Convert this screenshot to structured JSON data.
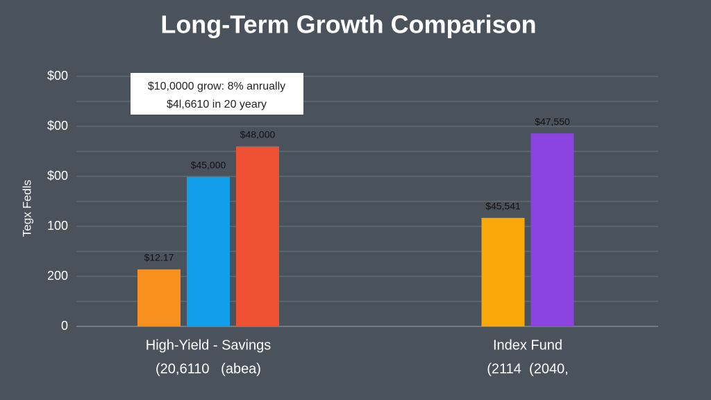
{
  "chart_data": {
    "type": "bar",
    "title": "Long-Term Growth Comparison",
    "y_label": "Tegx Fedls",
    "annotation": [
      "$10,0000 grow: 8% anrually",
      "$4l,6610 in 20 yeary"
    ],
    "ylim": [
      0,
      5
    ],
    "yticks": [
      {
        "value": 0,
        "label": "0"
      },
      {
        "value": 1,
        "label": "200"
      },
      {
        "value": 2,
        "label": "100"
      },
      {
        "value": 3,
        "label": "$00"
      },
      {
        "value": 4,
        "label": "$00"
      },
      {
        "value": 5,
        "label": "$00"
      }
    ],
    "minor_yticks": [
      0.5,
      1.5,
      2.5,
      3.5,
      4.5
    ],
    "grid": true,
    "groups": [
      {
        "label": "High-Yield - Savings",
        "sublabel": "(20,6110   (abea)",
        "bars": [
          {
            "value": 1.14,
            "label": "$12.17",
            "color": "#f7901e"
          },
          {
            "value": 2.99,
            "label": "$45,000",
            "color": "#129ee8"
          },
          {
            "value": 3.6,
            "label": "$48,000",
            "color": "#ef5233"
          }
        ]
      },
      {
        "label": "Index Fund",
        "sublabel": "(2114  (2040,",
        "bars": [
          {
            "value": 2.17,
            "label": "$45,541",
            "color": "#f9a80c"
          },
          {
            "value": 3.86,
            "label": "$47,550",
            "color": "#8b44e0"
          }
        ]
      }
    ]
  }
}
